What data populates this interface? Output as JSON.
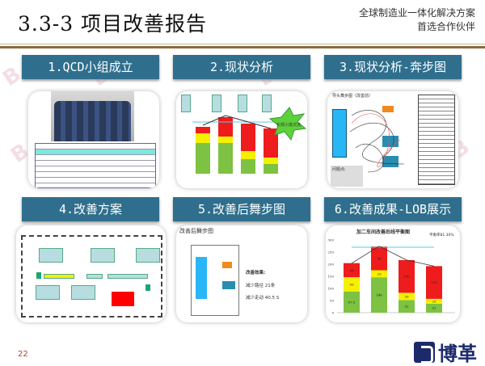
{
  "header": {
    "title": "3.3-3 项目改善报告",
    "tagline_line1": "全球制造业一体化解决方案",
    "tagline_line2": "首选合作伙伴"
  },
  "panels": [
    {
      "label": "1.QCD小组成立"
    },
    {
      "label": "2.现状分析",
      "callout": "实现小批次流"
    },
    {
      "label": "3.现状分析-奔步图",
      "subtitle": "导头舞步图（改善前）",
      "notes_title": "问题点:"
    },
    {
      "label": "4.改善方案"
    },
    {
      "label": "5.改善后舞步图",
      "subtitle": "改善后舞步图",
      "result_title": "改善效果:",
      "result1": "减少路径 21条",
      "result2": "减少走动 40.5 S"
    },
    {
      "label": "6.改善成果-LOB展示"
    }
  ],
  "page_number": "22",
  "logo": {
    "text": "博革"
  },
  "colors": {
    "title_bar": "#2f6f8d",
    "green": "#7dc242",
    "yellow": "#f5f000",
    "red": "#ee1c1c",
    "tt_line": "#5bc8e8"
  },
  "chart_data": {
    "type": "bar",
    "title": "加二车间改善后线平衡图",
    "annotation": "平衡率81.30%",
    "ylim": [
      0,
      300
    ],
    "yticks": [
      0,
      50,
      100,
      150,
      200,
      250,
      300
    ],
    "stacked": true,
    "series": [
      {
        "color": "#7dc242",
        "values": [
          87.5,
          146,
          52,
          37
        ]
      },
      {
        "color": "#f5f000",
        "values": [
          59,
          29,
          30,
          20
        ]
      },
      {
        "color": "#ee1c1c",
        "values": [
          58,
          98,
          135,
          135
        ]
      }
    ],
    "ct_line": [
      204,
      274,
      217,
      192
    ],
    "tt_value": 270
  }
}
